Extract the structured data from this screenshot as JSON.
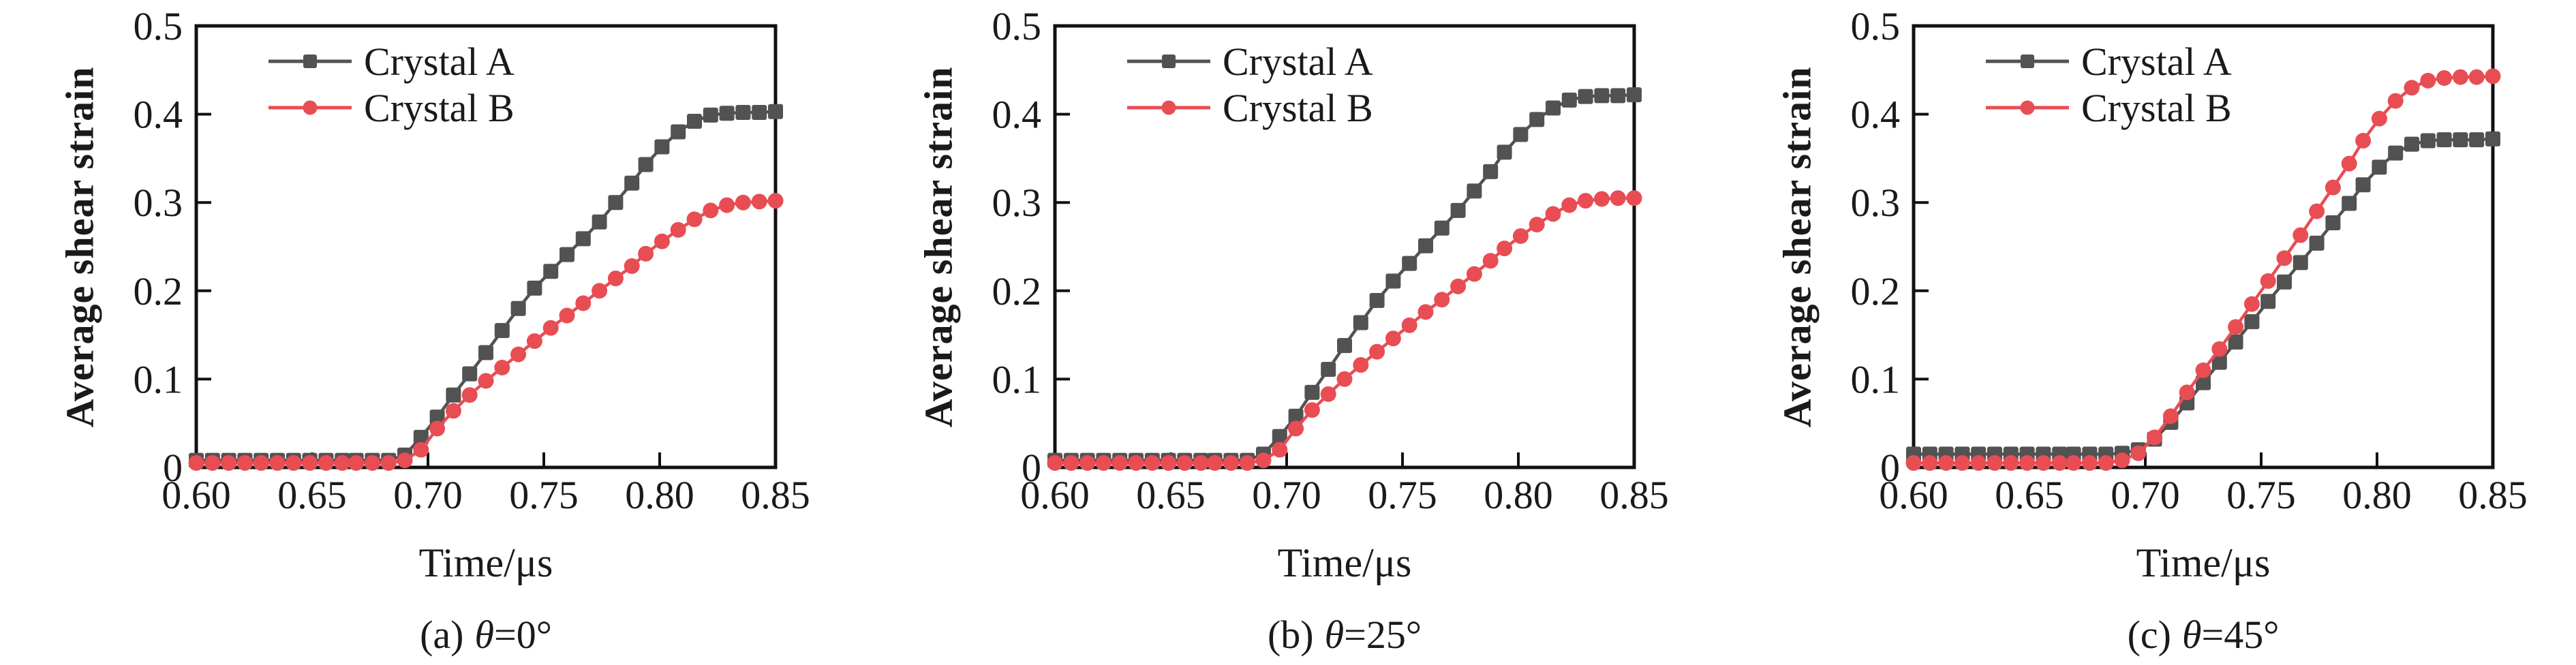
{
  "figure": {
    "ylabel": "Average shear strain",
    "xlabel": "Time/μs"
  },
  "chart_data": [
    {
      "type": "line",
      "caption": {
        "prefix": "(a)",
        "symbol": "θ",
        "suffix": "=0°"
      },
      "xlabel": "Time/μs",
      "ylabel": "Average shear strain",
      "xlim": [
        0.6,
        0.85
      ],
      "ylim": [
        0,
        0.5
      ],
      "grid": false,
      "legend_position": "top-left",
      "x_ticks": {
        "values": [
          0.6,
          0.65,
          0.7,
          0.75,
          0.8,
          0.85
        ],
        "labels": [
          "0.60",
          "0.65",
          "0.70",
          "0.75",
          "0.80",
          "0.85"
        ]
      },
      "y_ticks": {
        "values": [
          0,
          0.1,
          0.2,
          0.3,
          0.4,
          0.5
        ],
        "labels": [
          "0",
          "0.1",
          "0.2",
          "0.3",
          "0.4",
          "0.5"
        ]
      },
      "x": [
        0.6,
        0.607,
        0.614,
        0.621,
        0.628,
        0.635,
        0.642,
        0.649,
        0.656,
        0.663,
        0.669,
        0.676,
        0.683,
        0.69,
        0.697,
        0.704,
        0.711,
        0.718,
        0.725,
        0.732,
        0.739,
        0.746,
        0.753,
        0.76,
        0.767,
        0.774,
        0.781,
        0.788,
        0.794,
        0.801,
        0.808,
        0.815,
        0.822,
        0.829,
        0.836,
        0.843,
        0.85
      ],
      "series": [
        {
          "name": "Crystal A",
          "color": "#525252",
          "marker": "square",
          "values": [
            0.008,
            0.008,
            0.008,
            0.008,
            0.008,
            0.008,
            0.008,
            0.008,
            0.008,
            0.008,
            0.008,
            0.008,
            0.008,
            0.014,
            0.034,
            0.057,
            0.082,
            0.106,
            0.13,
            0.155,
            0.18,
            0.203,
            0.222,
            0.241,
            0.259,
            0.278,
            0.3,
            0.322,
            0.343,
            0.363,
            0.38,
            0.392,
            0.399,
            0.401,
            0.402,
            0.402,
            0.403
          ]
        },
        {
          "name": "Crystal B",
          "color": "#e84d53",
          "marker": "circle",
          "values": [
            0.005,
            0.005,
            0.005,
            0.005,
            0.005,
            0.005,
            0.005,
            0.005,
            0.005,
            0.005,
            0.005,
            0.005,
            0.005,
            0.008,
            0.02,
            0.044,
            0.064,
            0.082,
            0.098,
            0.113,
            0.128,
            0.143,
            0.158,
            0.172,
            0.186,
            0.2,
            0.214,
            0.228,
            0.242,
            0.256,
            0.269,
            0.281,
            0.291,
            0.297,
            0.3,
            0.301,
            0.302
          ]
        }
      ]
    },
    {
      "type": "line",
      "caption": {
        "prefix": "(b)",
        "symbol": "θ",
        "suffix": "=25°"
      },
      "xlabel": "Time/μs",
      "ylabel": "Average shear strain",
      "xlim": [
        0.6,
        0.85
      ],
      "ylim": [
        0,
        0.5
      ],
      "grid": false,
      "legend_position": "top-left",
      "x_ticks": {
        "values": [
          0.6,
          0.65,
          0.7,
          0.75,
          0.8,
          0.85
        ],
        "labels": [
          "0.60",
          "0.65",
          "0.70",
          "0.75",
          "0.80",
          "0.85"
        ]
      },
      "y_ticks": {
        "values": [
          0,
          0.1,
          0.2,
          0.3,
          0.4,
          0.5
        ],
        "labels": [
          "0",
          "0.1",
          "0.2",
          "0.3",
          "0.4",
          "0.5"
        ]
      },
      "x": [
        0.6,
        0.607,
        0.614,
        0.621,
        0.628,
        0.635,
        0.642,
        0.649,
        0.656,
        0.663,
        0.669,
        0.676,
        0.683,
        0.69,
        0.697,
        0.704,
        0.711,
        0.718,
        0.725,
        0.732,
        0.739,
        0.746,
        0.753,
        0.76,
        0.767,
        0.774,
        0.781,
        0.788,
        0.794,
        0.801,
        0.808,
        0.815,
        0.822,
        0.829,
        0.836,
        0.843,
        0.85
      ],
      "series": [
        {
          "name": "Crystal A",
          "color": "#525252",
          "marker": "square",
          "values": [
            0.008,
            0.008,
            0.008,
            0.008,
            0.008,
            0.008,
            0.008,
            0.008,
            0.008,
            0.008,
            0.008,
            0.008,
            0.008,
            0.015,
            0.035,
            0.058,
            0.085,
            0.111,
            0.138,
            0.164,
            0.189,
            0.211,
            0.231,
            0.251,
            0.271,
            0.291,
            0.313,
            0.335,
            0.357,
            0.377,
            0.394,
            0.407,
            0.416,
            0.42,
            0.421,
            0.421,
            0.422
          ]
        },
        {
          "name": "Crystal B",
          "color": "#e84d53",
          "marker": "circle",
          "values": [
            0.005,
            0.005,
            0.005,
            0.005,
            0.005,
            0.005,
            0.005,
            0.005,
            0.005,
            0.005,
            0.005,
            0.005,
            0.005,
            0.008,
            0.02,
            0.044,
            0.065,
            0.083,
            0.1,
            0.116,
            0.131,
            0.146,
            0.161,
            0.176,
            0.19,
            0.205,
            0.219,
            0.234,
            0.248,
            0.262,
            0.275,
            0.287,
            0.297,
            0.302,
            0.304,
            0.305,
            0.305
          ]
        }
      ]
    },
    {
      "type": "line",
      "caption": {
        "prefix": "(c)",
        "symbol": "θ",
        "suffix": "=45°"
      },
      "xlabel": "Time/μs",
      "ylabel": "Average shear strain",
      "xlim": [
        0.6,
        0.85
      ],
      "ylim": [
        0,
        0.5
      ],
      "grid": false,
      "legend_position": "top-left",
      "x_ticks": {
        "values": [
          0.6,
          0.65,
          0.7,
          0.75,
          0.8,
          0.85
        ],
        "labels": [
          "0.60",
          "0.65",
          "0.70",
          "0.75",
          "0.80",
          "0.85"
        ]
      },
      "y_ticks": {
        "values": [
          0,
          0.1,
          0.2,
          0.3,
          0.4,
          0.5
        ],
        "labels": [
          "0",
          "0.1",
          "0.2",
          "0.3",
          "0.4",
          "0.5"
        ]
      },
      "x": [
        0.6,
        0.607,
        0.614,
        0.621,
        0.628,
        0.635,
        0.642,
        0.649,
        0.656,
        0.663,
        0.669,
        0.676,
        0.683,
        0.69,
        0.697,
        0.704,
        0.711,
        0.718,
        0.725,
        0.732,
        0.739,
        0.746,
        0.753,
        0.76,
        0.767,
        0.774,
        0.781,
        0.788,
        0.794,
        0.801,
        0.808,
        0.815,
        0.822,
        0.829,
        0.836,
        0.843,
        0.85
      ],
      "series": [
        {
          "name": "Crystal A",
          "color": "#525252",
          "marker": "square",
          "values": [
            0.015,
            0.015,
            0.015,
            0.015,
            0.015,
            0.015,
            0.015,
            0.015,
            0.015,
            0.015,
            0.015,
            0.015,
            0.015,
            0.016,
            0.02,
            0.032,
            0.051,
            0.073,
            0.096,
            0.119,
            0.142,
            0.165,
            0.188,
            0.21,
            0.232,
            0.254,
            0.277,
            0.299,
            0.32,
            0.34,
            0.356,
            0.366,
            0.37,
            0.371,
            0.371,
            0.371,
            0.372
          ]
        },
        {
          "name": "Crystal B",
          "color": "#e84d53",
          "marker": "circle",
          "values": [
            0.005,
            0.005,
            0.005,
            0.005,
            0.005,
            0.005,
            0.005,
            0.005,
            0.005,
            0.005,
            0.005,
            0.005,
            0.005,
            0.008,
            0.016,
            0.034,
            0.058,
            0.085,
            0.11,
            0.134,
            0.159,
            0.185,
            0.211,
            0.237,
            0.263,
            0.29,
            0.317,
            0.344,
            0.37,
            0.395,
            0.415,
            0.43,
            0.438,
            0.441,
            0.442,
            0.442,
            0.443
          ]
        }
      ]
    }
  ]
}
